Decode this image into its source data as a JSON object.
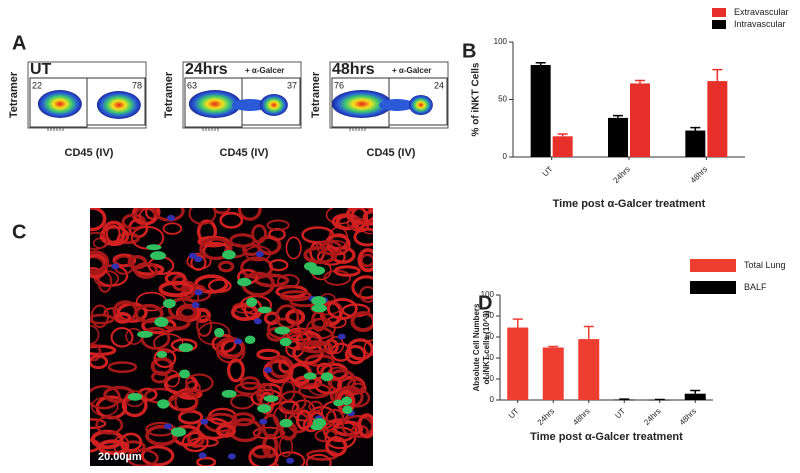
{
  "panel_labels": [
    "A",
    "B",
    "C",
    "D"
  ],
  "flow_plots": [
    {
      "label": "UT",
      "y_axis": "Tetramer",
      "x_axis": "CD45 (IV)",
      "gate_left": 22,
      "gate_right": 78
    },
    {
      "label": "24hrs",
      "treatment": "+ α-Galcer",
      "y_axis": "Tetramer",
      "x_axis": "CD45 (IV)",
      "gate_left": 63,
      "gate_right": 37
    },
    {
      "label": "48hrs",
      "treatment": "+ α-Galcer",
      "y_axis": "Tetramer",
      "x_axis": "CD45 (IV)",
      "gate_left": 76,
      "gate_right": 24
    }
  ],
  "image": {
    "scale_bar": "20.00µm"
  },
  "chart_data": [
    {
      "type": "bar",
      "ylabel": [
        "% of iNKT Cells"
      ],
      "xlabel": "Time post α-Galcer treatment",
      "categories": [
        "UT",
        "24hrs",
        "48hrs"
      ],
      "series": [
        {
          "name": "Intravascular",
          "color": "#000000",
          "values": [
            80,
            34,
            23
          ],
          "errors": [
            2,
            2,
            2.5
          ]
        },
        {
          "name": "Extravascular",
          "color": "#e8302a",
          "values": [
            18,
            64,
            66
          ],
          "errors": [
            2,
            2.5,
            10
          ]
        }
      ],
      "ylim": [
        0,
        100
      ],
      "yticks": [
        0,
        50,
        100
      ],
      "legend": "top-right"
    },
    {
      "type": "bar",
      "ylabel": [
        "Absolute Cell Numbers",
        "of iNKT cells (10^3)"
      ],
      "xlabel": "Time post α-Galcer treatment",
      "categories": [
        "UT",
        "24hrs",
        "48hrs",
        "UT",
        "24hrs",
        "48hrs"
      ],
      "series": [
        {
          "name": "Total Lung",
          "color": "#ee3e32",
          "values": [
            69,
            50,
            58,
            null,
            null,
            null
          ],
          "errors": [
            8,
            1,
            12,
            null,
            null,
            null
          ]
        },
        {
          "name": "BALF",
          "color": "#000000",
          "values": [
            null,
            null,
            null,
            0.5,
            0.3,
            6
          ],
          "errors": [
            null,
            null,
            null,
            0.3,
            0.2,
            3
          ]
        }
      ],
      "ylim": [
        0,
        100
      ],
      "yticks": [
        0,
        20,
        40,
        60,
        80,
        100
      ],
      "legend": "right"
    }
  ]
}
